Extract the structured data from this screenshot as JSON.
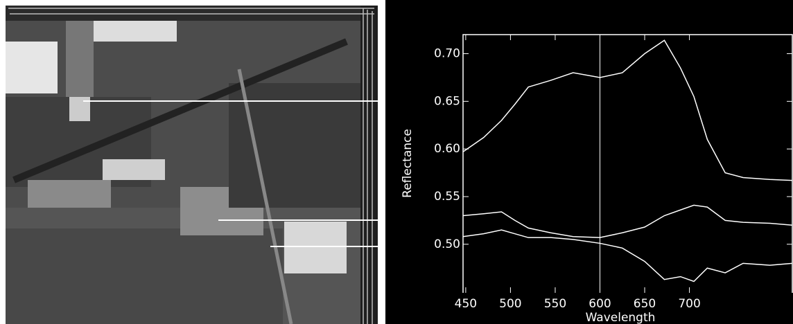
{
  "chart_data": {
    "type": "line",
    "xlabel": "Wavelength",
    "ylabel": "Reflectance",
    "x": [
      447,
      470,
      490,
      505,
      520,
      545,
      570,
      600,
      625,
      650,
      672,
      690,
      705,
      720,
      740,
      760,
      790,
      815
    ],
    "series": [
      {
        "color": "#ffffff",
        "values": [
          0.597,
          0.612,
          0.63,
          0.647,
          0.665,
          0.672,
          0.68,
          0.675,
          0.68,
          0.7,
          0.714,
          0.685,
          0.655,
          0.61,
          0.575,
          0.57,
          0.568,
          0.567
        ]
      },
      {
        "color": "#ffffff",
        "values": [
          0.53,
          0.532,
          0.534,
          0.525,
          0.517,
          0.512,
          0.508,
          0.507,
          0.512,
          0.518,
          0.53,
          0.536,
          0.541,
          0.539,
          0.525,
          0.523,
          0.522,
          0.52
        ]
      },
      {
        "color": "#ffffff",
        "values": [
          0.508,
          0.511,
          0.515,
          0.511,
          0.507,
          0.507,
          0.505,
          0.501,
          0.496,
          0.482,
          0.463,
          0.466,
          0.461,
          0.475,
          0.47,
          0.48,
          0.478,
          0.48
        ]
      }
    ],
    "cursor_x": 600,
    "xlim": [
      447,
      815
    ],
    "ylim": [
      0.449,
      0.72
    ],
    "xticks": [
      450,
      500,
      550,
      600,
      650,
      700
    ],
    "yticks": [
      {
        "value": 0.5,
        "label": "0.50"
      },
      {
        "value": 0.55,
        "label": "0.55"
      },
      {
        "value": 0.6,
        "label": "0.60"
      },
      {
        "value": 0.65,
        "label": "0.65"
      },
      {
        "value": 0.7,
        "label": "0.70"
      }
    ]
  }
}
